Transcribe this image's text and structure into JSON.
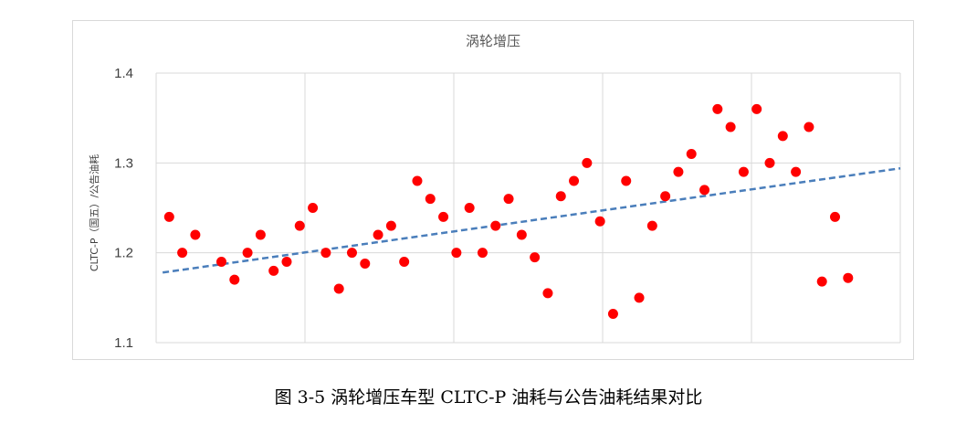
{
  "caption": "图 3-5 涡轮增压车型 CLTC-P 油耗与公告油耗结果对比",
  "colors": {
    "points": "#ff0000",
    "trendline": "#4a7ebb",
    "grid": "#d9d9d9",
    "frame": "#d9d9d9"
  },
  "chart_data": {
    "type": "scatter",
    "title": "涡轮增压",
    "ylabel": "CLTC-P（国五）/公告油耗",
    "xlabel": "",
    "ylim": [
      1.1,
      1.4
    ],
    "y_ticks": [
      "1.4",
      "1.3",
      "1.2",
      "1.1"
    ],
    "xlim": [
      0,
      57
    ],
    "x_tick_labels_shown": false,
    "grid": true,
    "legend": "none",
    "series": [
      {
        "points": [
          [
            1,
            1.24
          ],
          [
            2,
            1.2
          ],
          [
            3,
            1.22
          ],
          [
            5,
            1.19
          ],
          [
            6,
            1.17
          ],
          [
            7,
            1.2
          ],
          [
            8,
            1.22
          ],
          [
            9,
            1.18
          ],
          [
            10,
            1.19
          ],
          [
            11,
            1.23
          ],
          [
            12,
            1.25
          ],
          [
            13,
            1.2
          ],
          [
            14,
            1.16
          ],
          [
            15,
            1.2
          ],
          [
            16,
            1.188
          ],
          [
            17,
            1.22
          ],
          [
            18,
            1.23
          ],
          [
            19,
            1.19
          ],
          [
            20,
            1.28
          ],
          [
            21,
            1.26
          ],
          [
            22,
            1.24
          ],
          [
            23,
            1.2
          ],
          [
            24,
            1.25
          ],
          [
            25,
            1.2
          ],
          [
            26,
            1.23
          ],
          [
            27,
            1.26
          ],
          [
            28,
            1.22
          ],
          [
            29,
            1.195
          ],
          [
            30,
            1.155
          ],
          [
            31,
            1.263
          ],
          [
            32,
            1.28
          ],
          [
            33,
            1.3
          ],
          [
            34,
            1.235
          ],
          [
            35,
            1.132
          ],
          [
            36,
            1.28
          ],
          [
            37,
            1.15
          ],
          [
            38,
            1.23
          ],
          [
            39,
            1.263
          ],
          [
            40,
            1.29
          ],
          [
            41,
            1.31
          ],
          [
            42,
            1.27
          ],
          [
            43,
            1.36
          ],
          [
            44,
            1.34
          ],
          [
            45,
            1.29
          ],
          [
            46,
            1.36
          ],
          [
            47,
            1.3
          ],
          [
            48,
            1.33
          ],
          [
            49,
            1.29
          ],
          [
            50,
            1.34
          ],
          [
            51,
            1.168
          ],
          [
            52,
            1.24
          ],
          [
            53,
            1.172
          ]
        ]
      }
    ],
    "trendline": {
      "style": "linear",
      "dashed": true,
      "start": [
        0.5,
        1.178
      ],
      "end": [
        57,
        1.294
      ]
    }
  }
}
